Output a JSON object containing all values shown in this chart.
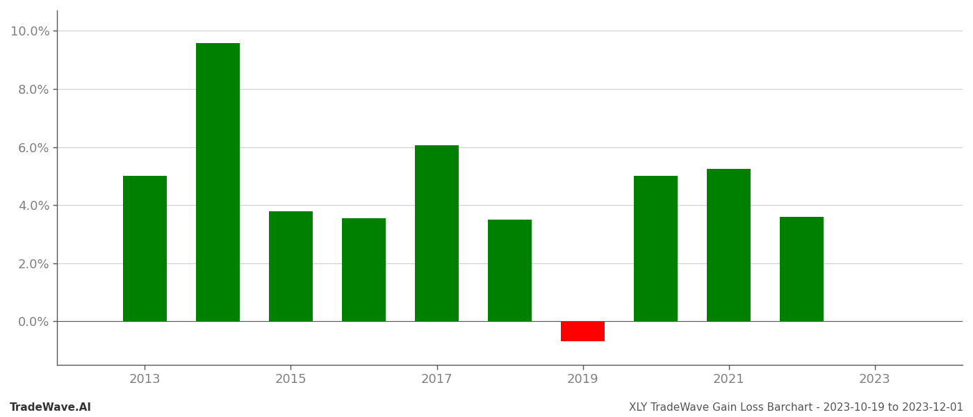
{
  "years": [
    2013,
    2014,
    2015,
    2016,
    2017,
    2018,
    2019,
    2020,
    2021,
    2022
  ],
  "values": [
    0.0501,
    0.0957,
    0.0378,
    0.0355,
    0.0605,
    0.035,
    -0.0068,
    0.05,
    0.0525,
    0.036
  ],
  "bar_colors": [
    "#008000",
    "#008000",
    "#008000",
    "#008000",
    "#008000",
    "#008000",
    "#ff0000",
    "#008000",
    "#008000",
    "#008000"
  ],
  "bar_width": 0.6,
  "ylim": [
    -0.015,
    0.107
  ],
  "yticks": [
    0.0,
    0.02,
    0.04,
    0.06,
    0.08,
    0.1
  ],
  "xticks": [
    2013,
    2015,
    2017,
    2019,
    2021,
    2023
  ],
  "xlim": [
    2011.8,
    2024.2
  ],
  "footer_left": "TradeWave.AI",
  "footer_right": "XLY TradeWave Gain Loss Barchart - 2023-10-19 to 2023-12-01",
  "grid_color": "#cccccc",
  "spine_color": "#555555",
  "tick_label_color": "#808080",
  "tick_color": "#555555",
  "footer_fontsize": 11,
  "tick_fontsize": 13,
  "background_color": "#ffffff"
}
